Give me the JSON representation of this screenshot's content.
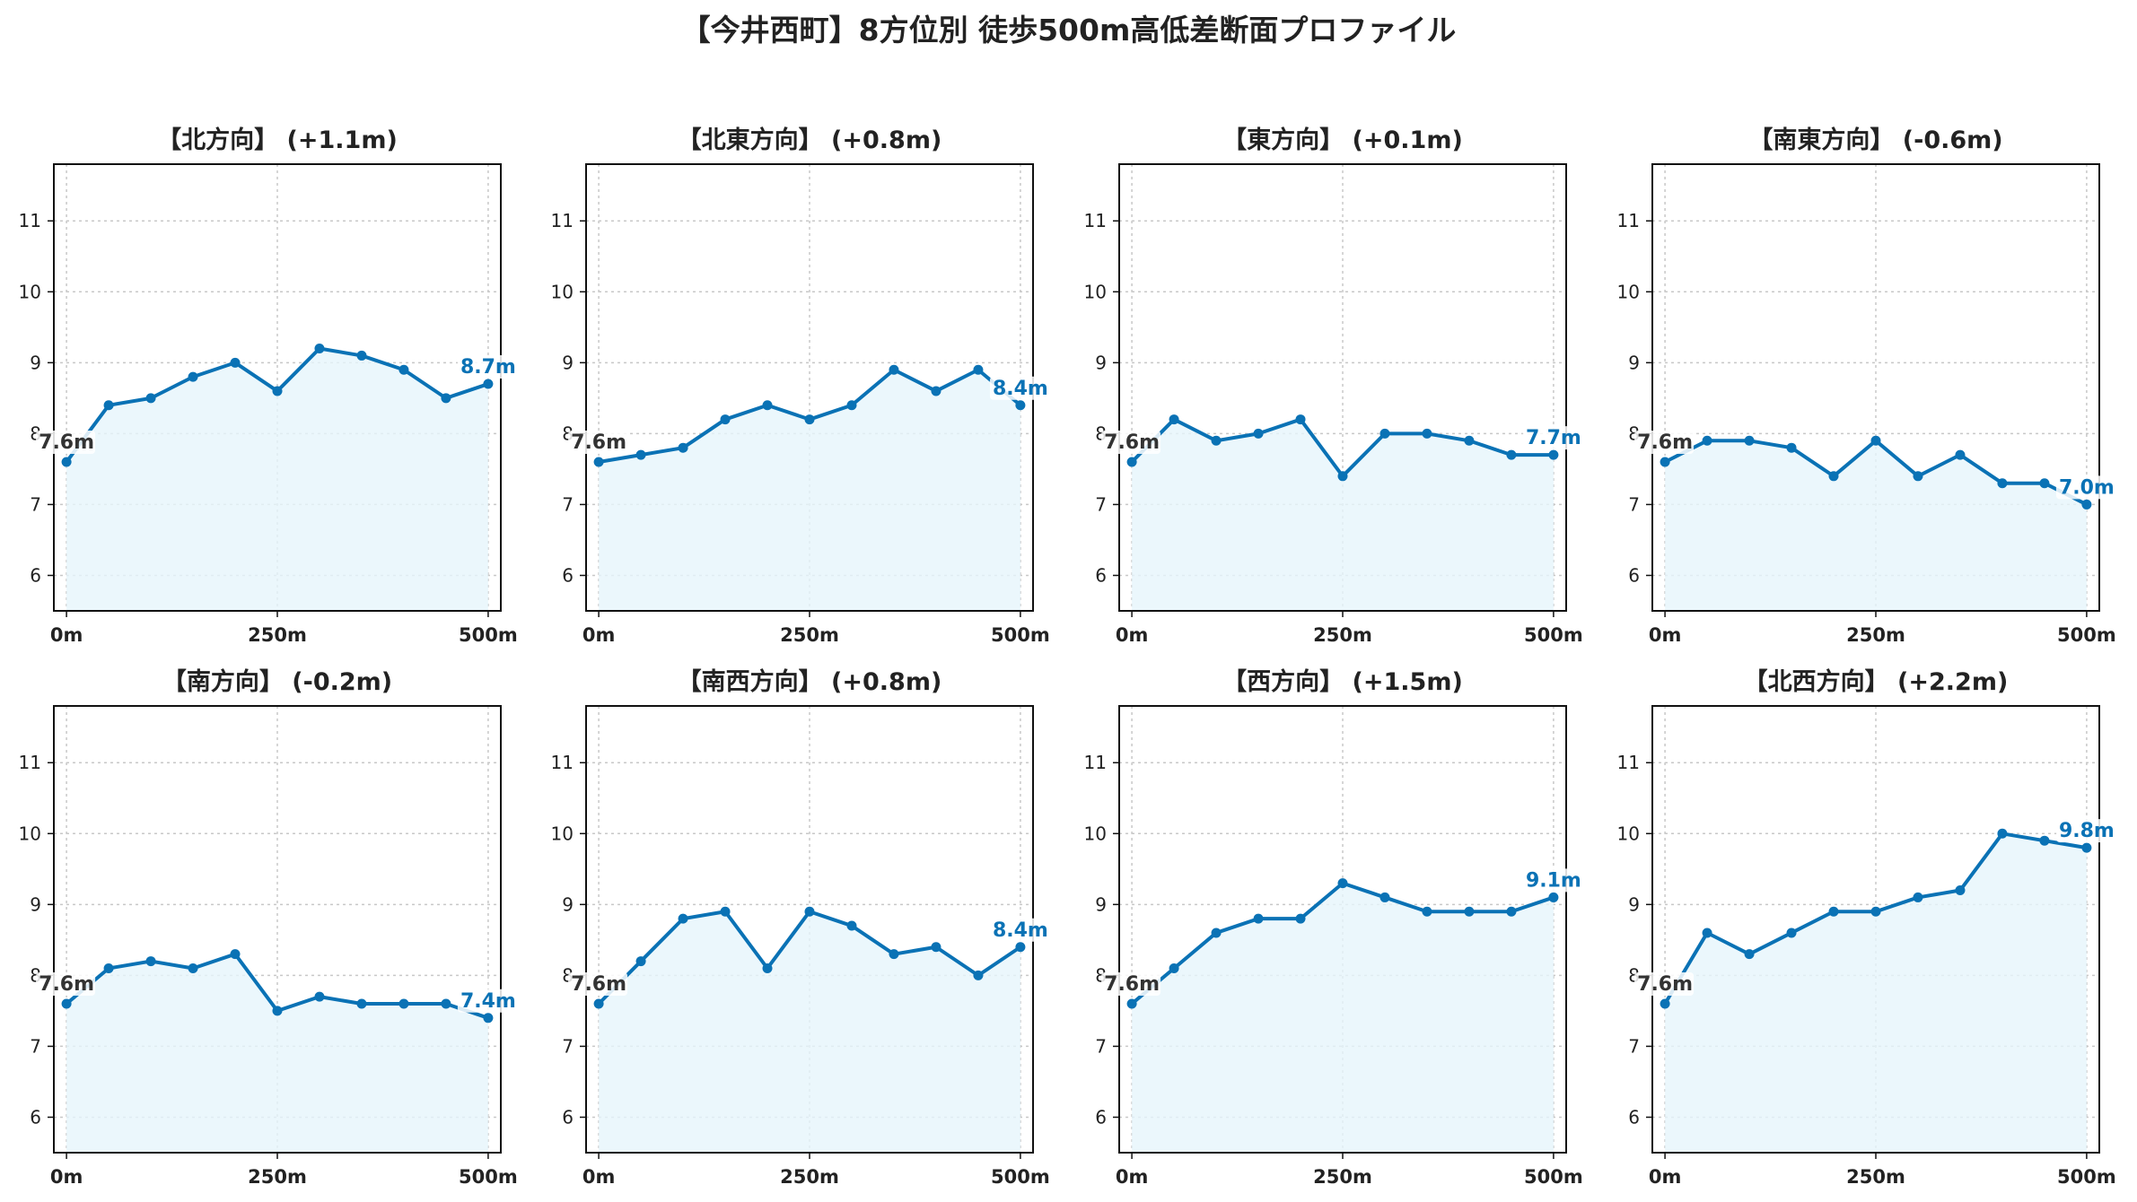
{
  "title": "【今井西町】8方位別 徒歩500m高低差断面プロファイル",
  "colors": {
    "line": "#0a72b5",
    "fill": "#e6f5fb",
    "start_label": "#333333",
    "end_label": "#0a72b5"
  },
  "chart_data": [
    {
      "type": "area",
      "title": "【北方向】 (+1.1m)",
      "x": [
        0,
        50,
        100,
        150,
        200,
        250,
        300,
        350,
        400,
        450,
        500
      ],
      "values": [
        7.6,
        8.4,
        8.5,
        8.8,
        9.0,
        8.6,
        9.2,
        9.1,
        8.9,
        8.5,
        8.7
      ],
      "start_label": "7.6m",
      "end_label": "8.7m",
      "ylim": [
        5.5,
        11.8
      ],
      "xlim": [
        -15,
        515
      ],
      "yticks": [
        6,
        7,
        8,
        9,
        10,
        11
      ],
      "xticks": [
        0,
        250,
        500
      ],
      "xtick_labels": [
        "0m",
        "250m",
        "500m"
      ],
      "grid": true
    },
    {
      "type": "area",
      "title": "【北東方向】 (+0.8m)",
      "x": [
        0,
        50,
        100,
        150,
        200,
        250,
        300,
        350,
        400,
        450,
        500
      ],
      "values": [
        7.6,
        7.7,
        7.8,
        8.2,
        8.4,
        8.2,
        8.4,
        8.9,
        8.6,
        8.9,
        8.4
      ],
      "start_label": "7.6m",
      "end_label": "8.4m",
      "ylim": [
        5.5,
        11.8
      ],
      "xlim": [
        -15,
        515
      ],
      "yticks": [
        6,
        7,
        8,
        9,
        10,
        11
      ],
      "xticks": [
        0,
        250,
        500
      ],
      "xtick_labels": [
        "0m",
        "250m",
        "500m"
      ],
      "grid": true
    },
    {
      "type": "area",
      "title": "【東方向】 (+0.1m)",
      "x": [
        0,
        50,
        100,
        150,
        200,
        250,
        300,
        350,
        400,
        450,
        500
      ],
      "values": [
        7.6,
        8.2,
        7.9,
        8.0,
        8.2,
        7.4,
        8.0,
        8.0,
        7.9,
        7.7,
        7.7
      ],
      "start_label": "7.6m",
      "end_label": "7.7m",
      "ylim": [
        5.5,
        11.8
      ],
      "xlim": [
        -15,
        515
      ],
      "yticks": [
        6,
        7,
        8,
        9,
        10,
        11
      ],
      "xticks": [
        0,
        250,
        500
      ],
      "xtick_labels": [
        "0m",
        "250m",
        "500m"
      ],
      "grid": true
    },
    {
      "type": "area",
      "title": "【南東方向】 (-0.6m)",
      "x": [
        0,
        50,
        100,
        150,
        200,
        250,
        300,
        350,
        400,
        450,
        500
      ],
      "values": [
        7.6,
        7.9,
        7.9,
        7.8,
        7.4,
        7.9,
        7.4,
        7.7,
        7.3,
        7.3,
        7.0
      ],
      "start_label": "7.6m",
      "end_label": "7.0m",
      "ylim": [
        5.5,
        11.8
      ],
      "xlim": [
        -15,
        515
      ],
      "yticks": [
        6,
        7,
        8,
        9,
        10,
        11
      ],
      "xticks": [
        0,
        250,
        500
      ],
      "xtick_labels": [
        "0m",
        "250m",
        "500m"
      ],
      "grid": true
    },
    {
      "type": "area",
      "title": "【南方向】 (-0.2m)",
      "x": [
        0,
        50,
        100,
        150,
        200,
        250,
        300,
        350,
        400,
        450,
        500
      ],
      "values": [
        7.6,
        8.1,
        8.2,
        8.1,
        8.3,
        7.5,
        7.7,
        7.6,
        7.6,
        7.6,
        7.4
      ],
      "start_label": "7.6m",
      "end_label": "7.4m",
      "ylim": [
        5.5,
        11.8
      ],
      "xlim": [
        -15,
        515
      ],
      "yticks": [
        6,
        7,
        8,
        9,
        10,
        11
      ],
      "xticks": [
        0,
        250,
        500
      ],
      "xtick_labels": [
        "0m",
        "250m",
        "500m"
      ],
      "grid": true
    },
    {
      "type": "area",
      "title": "【南西方向】 (+0.8m)",
      "x": [
        0,
        50,
        100,
        150,
        200,
        250,
        300,
        350,
        400,
        450,
        500
      ],
      "values": [
        7.6,
        8.2,
        8.8,
        8.9,
        8.1,
        8.9,
        8.7,
        8.3,
        8.4,
        8.0,
        8.4
      ],
      "start_label": "7.6m",
      "end_label": "8.4m",
      "ylim": [
        5.5,
        11.8
      ],
      "xlim": [
        -15,
        515
      ],
      "yticks": [
        6,
        7,
        8,
        9,
        10,
        11
      ],
      "xticks": [
        0,
        250,
        500
      ],
      "xtick_labels": [
        "0m",
        "250m",
        "500m"
      ],
      "grid": true
    },
    {
      "type": "area",
      "title": "【西方向】 (+1.5m)",
      "x": [
        0,
        50,
        100,
        150,
        200,
        250,
        300,
        350,
        400,
        450,
        500
      ],
      "values": [
        7.6,
        8.1,
        8.6,
        8.8,
        8.8,
        9.3,
        9.1,
        8.9,
        8.9,
        8.9,
        9.1
      ],
      "start_label": "7.6m",
      "end_label": "9.1m",
      "ylim": [
        5.5,
        11.8
      ],
      "xlim": [
        -15,
        515
      ],
      "yticks": [
        6,
        7,
        8,
        9,
        10,
        11
      ],
      "xticks": [
        0,
        250,
        500
      ],
      "xtick_labels": [
        "0m",
        "250m",
        "500m"
      ],
      "grid": true
    },
    {
      "type": "area",
      "title": "【北西方向】 (+2.2m)",
      "x": [
        0,
        50,
        100,
        150,
        200,
        250,
        300,
        350,
        400,
        450,
        500
      ],
      "values": [
        7.6,
        8.6,
        8.3,
        8.6,
        8.9,
        8.9,
        9.1,
        9.2,
        10.0,
        9.9,
        9.8
      ],
      "start_label": "7.6m",
      "end_label": "9.8m",
      "ylim": [
        5.5,
        11.8
      ],
      "xlim": [
        -15,
        515
      ],
      "yticks": [
        6,
        7,
        8,
        9,
        10,
        11
      ],
      "xticks": [
        0,
        250,
        500
      ],
      "xtick_labels": [
        "0m",
        "250m",
        "500m"
      ],
      "grid": true
    }
  ]
}
